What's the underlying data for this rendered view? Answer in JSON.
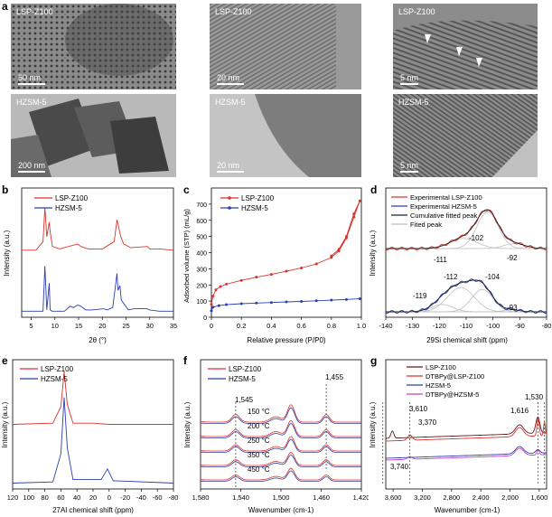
{
  "panel_letters": {
    "a": "a",
    "b": "b",
    "c": "c",
    "d": "d",
    "e": "e",
    "f": "f",
    "g": "g"
  },
  "tem": {
    "r1c1": {
      "label": "LSP-Z100",
      "scale": "50 nm"
    },
    "r1c2": {
      "label": "LSP-Z100",
      "scale": "20 nm"
    },
    "r1c3": {
      "label": "LSP-Z100",
      "scale": "5 nm"
    },
    "r2c1": {
      "label": "HZSM-5",
      "scale": "200 nm"
    },
    "r2c2": {
      "label": "HZSM-5",
      "scale": "20 nm"
    },
    "r2c3": {
      "label": "HZSM-5",
      "scale": "5 nm"
    }
  },
  "colors": {
    "red": "#d9332d",
    "blue": "#2b3fb0",
    "dark": "#5a1a1a",
    "violet": "#c040c0",
    "gray": "#9a9a9a"
  },
  "chart_data": [
    {
      "panel": "b",
      "type": "line",
      "xlabel": "2θ (°)",
      "ylabel": "Intensity (a.u.)",
      "xlim": [
        3,
        35
      ],
      "xticks": [
        "5",
        "10",
        "15",
        "20",
        "25",
        "30",
        "35"
      ],
      "series": [
        {
          "name": "LSP-Z100",
          "x": [
            3,
            6,
            7.5,
            7.9,
            8.3,
            8.8,
            9.0,
            9.5,
            11,
            14.8,
            15.5,
            17,
            20,
            22.5,
            23.1,
            23.9,
            24.5,
            26,
            29.5,
            30,
            32,
            35
          ],
          "y": [
            0.55,
            0.55,
            0.62,
            0.9,
            0.66,
            0.78,
            0.7,
            0.58,
            0.56,
            0.6,
            0.58,
            0.56,
            0.56,
            0.62,
            0.8,
            0.66,
            0.6,
            0.57,
            0.58,
            0.56,
            0.56,
            0.55
          ]
        },
        {
          "name": "HZSM-5",
          "x": [
            3,
            7.5,
            7.9,
            8.3,
            8.8,
            9.0,
            9.4,
            12,
            13.2,
            13.9,
            14.8,
            15.5,
            16.5,
            17.8,
            20.3,
            21,
            22.2,
            23.1,
            23.3,
            23.7,
            24,
            24.4,
            25.5,
            26.7,
            29.3,
            30,
            32,
            35
          ],
          "y": [
            0.05,
            0.05,
            0.42,
            0.06,
            0.28,
            0.06,
            0.05,
            0.05,
            0.09,
            0.08,
            0.1,
            0.09,
            0.06,
            0.06,
            0.07,
            0.06,
            0.08,
            0.36,
            0.22,
            0.26,
            0.14,
            0.12,
            0.06,
            0.07,
            0.07,
            0.06,
            0.05,
            0.05
          ]
        }
      ]
    },
    {
      "panel": "c",
      "type": "line",
      "xlabel": "Relative pressure (P/P0)",
      "ylabel": "Adsorbed volume (STP) (mL/g)",
      "xlim": [
        0,
        1.0
      ],
      "ylim": [
        0,
        800
      ],
      "xticks": [
        "0",
        "0.2",
        "0.4",
        "0.6",
        "0.8",
        "1.0"
      ],
      "yticks": [
        "0",
        "100",
        "200",
        "300",
        "400",
        "500",
        "600",
        "700"
      ],
      "series": [
        {
          "name": "LSP-Z100",
          "x": [
            0,
            0.01,
            0.03,
            0.06,
            0.1,
            0.2,
            0.3,
            0.4,
            0.5,
            0.6,
            0.7,
            0.8,
            0.85,
            0.9,
            0.95,
            0.99,
            0.95,
            0.9,
            0.85,
            0.8
          ],
          "y": [
            80,
            130,
            170,
            190,
            205,
            228,
            248,
            265,
            285,
            305,
            330,
            370,
            410,
            490,
            620,
            720,
            640,
            500,
            420,
            380
          ]
        },
        {
          "name": "HZSM-5",
          "x": [
            0,
            0.01,
            0.05,
            0.1,
            0.2,
            0.3,
            0.4,
            0.5,
            0.6,
            0.7,
            0.8,
            0.9,
            0.99
          ],
          "y": [
            40,
            62,
            72,
            78,
            84,
            88,
            91,
            95,
            98,
            102,
            106,
            110,
            115
          ]
        }
      ]
    },
    {
      "panel": "d",
      "type": "line",
      "xlabel": "29Si chemical shift (ppm)",
      "ylabel": "Intensity (a.u.)",
      "xlim": [
        -140,
        -80
      ],
      "xticks": [
        "-140",
        "-130",
        "-120",
        "-110",
        "-100",
        "-90",
        "-80"
      ],
      "legend": [
        "Experimental LSP-Z100",
        "Experimental HZSM-5",
        "Cumulative fitted peak",
        "Fited peak"
      ],
      "peaks_top": [
        "-111",
        "-102",
        "-92"
      ],
      "peaks_bottom": [
        "-112",
        "-104",
        "-119",
        "-93"
      ]
    },
    {
      "panel": "e",
      "type": "line",
      "xlabel": "27Al chemical shift (ppm)",
      "ylabel": "Intensity (a.u.)",
      "xlim": [
        120,
        -80
      ],
      "xticks": [
        "120",
        "100",
        "80",
        "60",
        "40",
        "20",
        "0",
        "-20",
        "-40",
        "-60",
        "-80"
      ],
      "series": [
        {
          "name": "LSP-Z100",
          "x": [
            120,
            70,
            60,
            56,
            52,
            45,
            20,
            0,
            -80
          ],
          "y": [
            0.55,
            0.56,
            0.7,
            1.0,
            0.72,
            0.56,
            0.56,
            0.55,
            0.55
          ]
        },
        {
          "name": "HZSM-5",
          "x": [
            120,
            70,
            60,
            56,
            52,
            45,
            10,
            2,
            -5,
            -80
          ],
          "y": [
            0.05,
            0.06,
            0.3,
            0.78,
            0.35,
            0.08,
            0.08,
            0.17,
            0.07,
            0.05
          ]
        }
      ]
    },
    {
      "panel": "f",
      "type": "line",
      "xlabel": "Wavenumber (cm-1)",
      "ylabel": "Intensity (a.u.)",
      "xlim": [
        1580,
        1420
      ],
      "xticks": [
        "1,580",
        "1,540",
        "1,500",
        "1,460",
        "1,420"
      ],
      "legend": [
        "LSP-Z100",
        "HZSM-5"
      ],
      "temperatures": [
        "150 °C",
        "200 °C",
        "250 °C",
        "350 °C",
        "450 °C"
      ],
      "marks": [
        "1,545",
        "1,455"
      ]
    },
    {
      "panel": "g",
      "type": "line",
      "xlabel": "Wavenumber (cm-1)",
      "ylabel": "Intensity (a.u.)",
      "xlim": [
        3700,
        1500
      ],
      "xticks": [
        "3,600",
        "3,200",
        "2,800",
        "2,400",
        "2,000",
        "1,600"
      ],
      "legend": [
        "LSP-Z100",
        "DTBPy@LSP-Z100",
        "HZSM-5",
        "DTBPy@HZSM-5"
      ],
      "marks": [
        "3,610",
        "3,370",
        "3,740",
        "1,616",
        "1,530"
      ]
    }
  ]
}
